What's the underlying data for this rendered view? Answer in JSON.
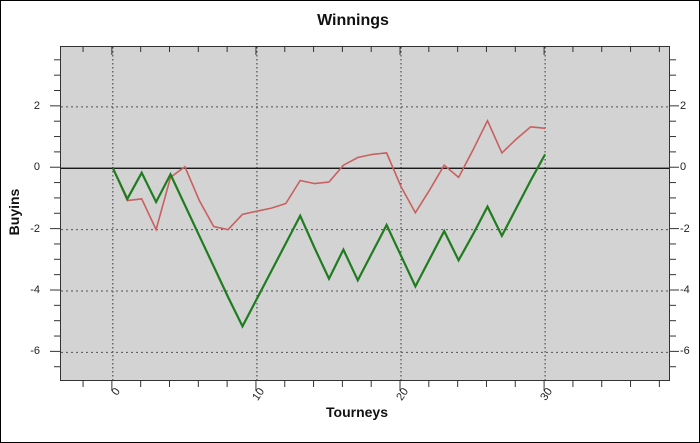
{
  "title": "Winnings",
  "axes": {
    "x_label": "Tourneys",
    "y_label": "Buyins"
  },
  "colors": {
    "plot_bg": "#d3d3d3",
    "plot_border": "#333333",
    "grid": "#555555",
    "zero_line": "#000000",
    "tick": "#333333",
    "green_series": "#1f7d1f",
    "red_series": "#c96060"
  },
  "chart_data": {
    "type": "line",
    "title": "Winnings",
    "xlabel": "Tourneys",
    "ylabel": "Buyins",
    "grid": true,
    "legend_position": "none",
    "xlim": [
      -3.6,
      38.6
    ],
    "ylim": [
      -6.9,
      3.95
    ],
    "x_major_ticks": [
      0,
      10,
      20,
      30
    ],
    "x_minor_range": [
      -2,
      38
    ],
    "x_minor_step": 2,
    "y_major_ticks": [
      2,
      0,
      -2,
      -4,
      -6
    ],
    "y_minor_range": [
      -6.5,
      3.5
    ],
    "y_minor_step": 0.5,
    "x": [
      0,
      1,
      2,
      3,
      4,
      5,
      6,
      7,
      8,
      9,
      10,
      11,
      12,
      13,
      14,
      15,
      16,
      17,
      18,
      19,
      20,
      21,
      22,
      23,
      24,
      25,
      26,
      27,
      28,
      29,
      30
    ],
    "series": [
      {
        "name": "green-line",
        "color": "#1f7d1f",
        "width": 2.2,
        "values": [
          0,
          -1.0,
          -0.15,
          -1.1,
          -0.2,
          -1.2,
          -2.2,
          -3.2,
          -4.2,
          -5.15,
          -4.25,
          -3.35,
          -2.45,
          -1.55,
          -2.6,
          -3.6,
          -2.65,
          -3.65,
          -2.75,
          -1.85,
          -2.85,
          -3.85,
          -2.95,
          -2.05,
          -3.0,
          -2.15,
          -1.25,
          -2.2,
          -1.3,
          -0.4,
          0.45
        ]
      },
      {
        "name": "red-line",
        "color": "#c96060",
        "width": 1.6,
        "values": [
          0,
          -1.05,
          -1.0,
          -2.0,
          -0.3,
          0.05,
          -1.05,
          -1.9,
          -2.0,
          -1.5,
          -1.4,
          -1.3,
          -1.15,
          -0.4,
          -0.5,
          -0.45,
          0.1,
          0.35,
          0.45,
          0.5,
          -0.6,
          -1.45,
          -0.7,
          0.1,
          -0.3,
          0.6,
          1.55,
          0.5,
          0.95,
          1.35,
          1.3
        ]
      }
    ]
  }
}
